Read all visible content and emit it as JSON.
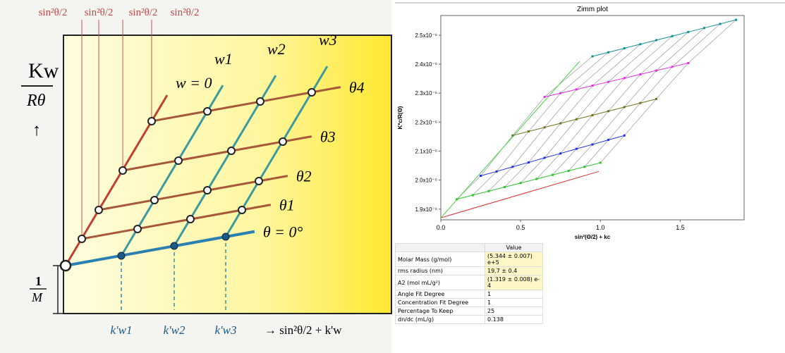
{
  "diagram": {
    "top_labels": [
      "sin²θ/2",
      "sin²θ/2",
      "sin²θ/2",
      "sin²θ/2"
    ],
    "y_label_top": "Kw",
    "y_label_bottom": "Rθ",
    "y_arrow": "↑",
    "intercept_top": "1",
    "intercept_bottom": "M",
    "w_labels": [
      "w = 0",
      "w1",
      "w2",
      "w3"
    ],
    "theta_labels": [
      "θ = 0°",
      "θ1",
      "θ2",
      "θ3",
      "θ4"
    ],
    "k_labels": [
      "k'w1",
      "k'w2",
      "k'w3"
    ],
    "x_label": "→ sin²θ/2 + k'w"
  },
  "chart_data": {
    "type": "line",
    "title": "Zimm plot",
    "x_label": "sin²(Θ/2) + kc",
    "y_label": "K*c/R(Θ)",
    "xlim": [
      0,
      1.9
    ],
    "ylim": [
      1.863e-06,
      2.568e-06
    ],
    "xticks": [
      {
        "value": 0,
        "label": "0.0"
      },
      0.5,
      {
        "value": 1,
        "label": "1.0"
      },
      1.5
    ],
    "yticks": [
      {
        "value": 1.9e-06,
        "label": "1.9x10⁻⁶"
      },
      {
        "value": 2e-06,
        "label": "2.0x10⁻⁶"
      },
      {
        "value": 2.1e-06,
        "label": "2.1x10⁻⁶"
      },
      {
        "value": 2.2e-06,
        "label": "2.2x10⁻⁶"
      },
      {
        "value": 2.3e-06,
        "label": "2.3x10⁻⁶"
      },
      {
        "value": 2.4e-06,
        "label": "2.4x10⁻⁶"
      },
      {
        "value": 2.5e-06,
        "label": "2.5x10⁻⁶"
      }
    ],
    "series": [
      {
        "color": "#e03030",
        "markers": false,
        "x": [
          0,
          0.99
        ],
        "values": [
          1.87e-06,
          2.03e-06
        ]
      },
      {
        "color": "#50d050",
        "markers": false,
        "x": [
          0,
          0.87
        ],
        "values": [
          1.87e-06,
          2.41e-06
        ]
      },
      {
        "color": "#30c030",
        "markers": true,
        "x": [
          0.1,
          0.2,
          0.3,
          0.4,
          0.5,
          0.6,
          0.7,
          0.8,
          0.9,
          1.0
        ],
        "values": [
          1.934e-06,
          1.948e-06,
          1.962e-06,
          1.976e-06,
          1.99e-06,
          2.004e-06,
          2.018e-06,
          2.032e-06,
          2.046e-06,
          2.06e-06
        ]
      },
      {
        "color": "#2030e0",
        "markers": true,
        "x": [
          0.25,
          0.35,
          0.45,
          0.55,
          0.65,
          0.75,
          0.85,
          0.95,
          1.05,
          1.15
        ],
        "values": [
          2.015e-06,
          2.03e-06,
          2.046e-06,
          2.061e-06,
          2.077e-06,
          2.092e-06,
          2.108e-06,
          2.123e-06,
          2.139e-06,
          2.154e-06
        ]
      },
      {
        "color": "#707020",
        "markers": true,
        "x": [
          0.45,
          0.55,
          0.65,
          0.75,
          0.85,
          0.95,
          1.05,
          1.15,
          1.25,
          1.35
        ],
        "values": [
          2.154e-06,
          2.168e-06,
          2.182e-06,
          2.196e-06,
          2.21e-06,
          2.224e-06,
          2.238e-06,
          2.252e-06,
          2.266e-06,
          2.28e-06
        ]
      },
      {
        "color": "#e030e0",
        "markers": true,
        "x": [
          0.65,
          0.75,
          0.85,
          0.95,
          1.05,
          1.15,
          1.25,
          1.35,
          1.45,
          1.55
        ],
        "values": [
          2.287e-06,
          2.3e-06,
          2.313e-06,
          2.326e-06,
          2.339e-06,
          2.352e-06,
          2.365e-06,
          2.378e-06,
          2.391e-06,
          2.404e-06
        ]
      },
      {
        "color": "#109090",
        "markers": true,
        "x": [
          0.95,
          1.05,
          1.15,
          1.25,
          1.35,
          1.45,
          1.55,
          1.65,
          1.75,
          1.85
        ],
        "values": [
          2.427e-06,
          2.441e-06,
          2.455e-06,
          2.469e-06,
          2.483e-06,
          2.497e-06,
          2.511e-06,
          2.525e-06,
          2.539e-06,
          2.553e-06
        ]
      }
    ]
  },
  "table": {
    "header": "Value",
    "rows": [
      [
        "Molar Mass (g/mol)",
        "(5.344 ± 0.007) e+5"
      ],
      [
        "rms radius (nm)",
        "19.7 ± 0.4"
      ],
      [
        "A2 (mol mL/g²)",
        "(1.319 ± 0.008) e-4"
      ],
      [
        "Angle Fit Degree",
        "1"
      ],
      [
        "Concentration Fit Degree",
        "1"
      ],
      [
        "Percentage To Keep",
        "25"
      ],
      [
        "dn/dc (mL/g)",
        "0.138"
      ]
    ]
  }
}
